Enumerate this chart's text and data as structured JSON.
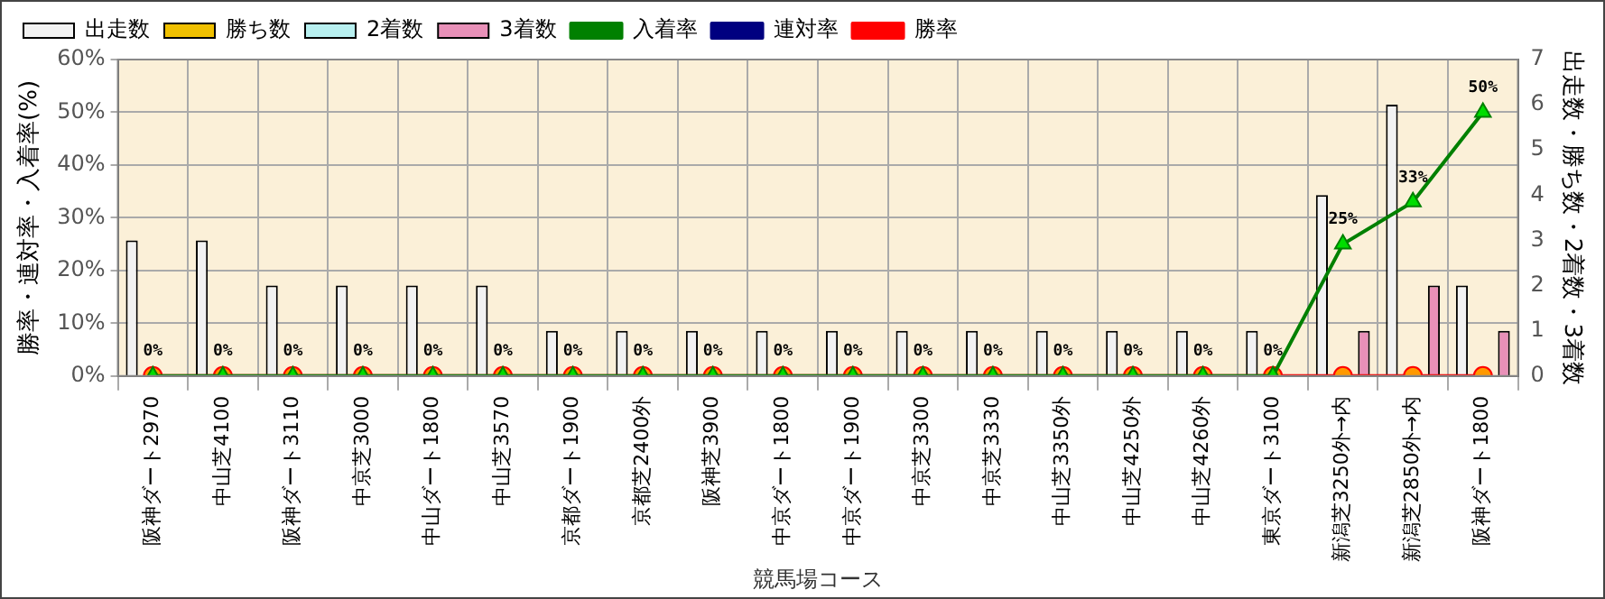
{
  "chart_data": {
    "type": "bar",
    "xlabel": "競馬場コース",
    "ylabel": "勝率・連対率・入着率(%)",
    "y2label": "出走数・勝ち数・2着数・3着数",
    "categories": [
      "阪神ダート2970",
      "中山芝4100",
      "阪神ダート3110",
      "中京芝3000",
      "中山ダート1800",
      "中山芝3570",
      "京都ダート1900",
      "京都芝2400外",
      "阪神芝3900",
      "中京ダート1800",
      "中京ダート1900",
      "中京芝3300",
      "中京芝3330",
      "中山芝3350外",
      "中山芝4250外",
      "中山芝4260外",
      "東京ダート3100",
      "新潟芝3250外→内",
      "新潟芝2850外→内",
      "阪神ダート1800"
    ],
    "series": [
      {
        "name": "出走数",
        "axis": "y2",
        "color": "#f2f2f2",
        "values": [
          3,
          3,
          2,
          2,
          2,
          2,
          1,
          1,
          1,
          1,
          1,
          1,
          1,
          1,
          1,
          1,
          1,
          4,
          6,
          2
        ]
      },
      {
        "name": "勝ち数",
        "axis": "y2",
        "color": "#f0c000",
        "values": [
          0,
          0,
          0,
          0,
          0,
          0,
          0,
          0,
          0,
          0,
          0,
          0,
          0,
          0,
          0,
          0,
          0,
          0,
          0,
          0
        ]
      },
      {
        "name": "2着数",
        "axis": "y2",
        "color": "#b8f0f0",
        "values": [
          0,
          0,
          0,
          0,
          0,
          0,
          0,
          0,
          0,
          0,
          0,
          0,
          0,
          0,
          0,
          0,
          0,
          0,
          0,
          0
        ]
      },
      {
        "name": "3着数",
        "axis": "y2",
        "color": "#e890b8",
        "values": [
          0,
          0,
          0,
          0,
          0,
          0,
          0,
          0,
          0,
          0,
          0,
          0,
          0,
          0,
          0,
          0,
          0,
          1,
          2,
          1
        ]
      },
      {
        "name": "入着率",
        "type": "line",
        "color": "#008000",
        "marker": "triangle",
        "values": [
          0,
          0,
          0,
          0,
          0,
          0,
          0,
          0,
          0,
          0,
          0,
          0,
          0,
          0,
          0,
          0,
          0,
          25,
          33,
          50
        ],
        "value_labels": [
          "0%",
          "0%",
          "0%",
          "0%",
          "0%",
          "0%",
          "0%",
          "0%",
          "0%",
          "0%",
          "0%",
          "0%",
          "0%",
          "0%",
          "0%",
          "0%",
          "0%",
          "25%",
          "33%",
          "50%"
        ]
      },
      {
        "name": "連対率",
        "type": "line",
        "color": "#000080",
        "marker": "diamond",
        "values": [
          null,
          null,
          null,
          null,
          null,
          null,
          null,
          null,
          null,
          null,
          null,
          null,
          null,
          null,
          null,
          null,
          null,
          null,
          null,
          null
        ]
      },
      {
        "name": "勝率",
        "type": "line",
        "color": "#ff0000",
        "marker": "circle",
        "values": [
          0,
          0,
          0,
          0,
          0,
          0,
          0,
          0,
          0,
          0,
          0,
          0,
          0,
          0,
          0,
          0,
          0,
          0,
          0,
          0
        ]
      }
    ],
    "ylim": [
      0,
      60
    ],
    "yticks": [
      {
        "value": 0,
        "label": "0%"
      },
      {
        "value": 10,
        "label": "10%"
      },
      {
        "value": 20,
        "label": "20%"
      },
      {
        "value": 30,
        "label": "30%"
      },
      {
        "value": 40,
        "label": "40%"
      },
      {
        "value": 50,
        "label": "50%"
      },
      {
        "value": 60,
        "label": "60%"
      }
    ],
    "y2lim": [
      0,
      7
    ],
    "y2ticks": [
      0,
      1,
      2,
      3,
      4,
      5,
      6,
      7
    ],
    "grid": true,
    "legend": "top"
  }
}
